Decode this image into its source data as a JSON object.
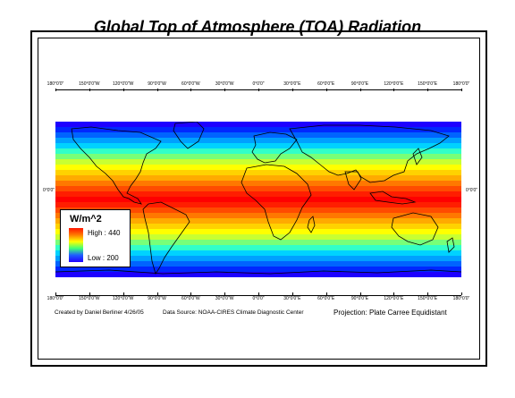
{
  "title": "Global Top of Atmosphere (TOA) Radiation",
  "longitude_ticks": [
    "180°0'0\"",
    "150°0'0\"W",
    "120°0'0\"W",
    "90°0'0\"W",
    "60°0'0\"W",
    "30°0'0\"W",
    "0°0'0\"",
    "30°0'0\"E",
    "60°0'0\"E",
    "90°0'0\"E",
    "120°0'0\"E",
    "150°0'0\"E",
    "180°0'0\""
  ],
  "latitude_label": "0°0'0\"",
  "legend": {
    "title": "W/m^2",
    "high_label": "High : 440",
    "low_label": "Low : 200",
    "high_value": 440,
    "low_value": 200,
    "ramp_colors": [
      "#ff1400",
      "#ff7a00",
      "#ffff00",
      "#3cff7a",
      "#1e5bff",
      "#2200ff"
    ]
  },
  "footer": {
    "created_by": "Created by Daniel Berliner 4/26/05",
    "data_source": "Data Source: NOAA-CIRES Climate Diagnostic Center",
    "projection": "Projection: Plate Carree Equidistant"
  },
  "band_colors": [
    "#1e00ff",
    "#0028ff",
    "#0064ff",
    "#00a0ff",
    "#00d2ff",
    "#32ffc8",
    "#78ff78",
    "#c8ff32",
    "#ffff00",
    "#ffd200",
    "#ffaa00",
    "#ff7800",
    "#ff4b00",
    "#ff1e00",
    "#ff0000",
    "#ff1e00",
    "#ff4b00",
    "#ff7800",
    "#ffaa00",
    "#ffd200",
    "#ffff00",
    "#c8ff32",
    "#78ff78",
    "#32ffc8",
    "#00d2ff",
    "#00a0ff",
    "#0064ff",
    "#0028ff",
    "#1e00ff"
  ]
}
